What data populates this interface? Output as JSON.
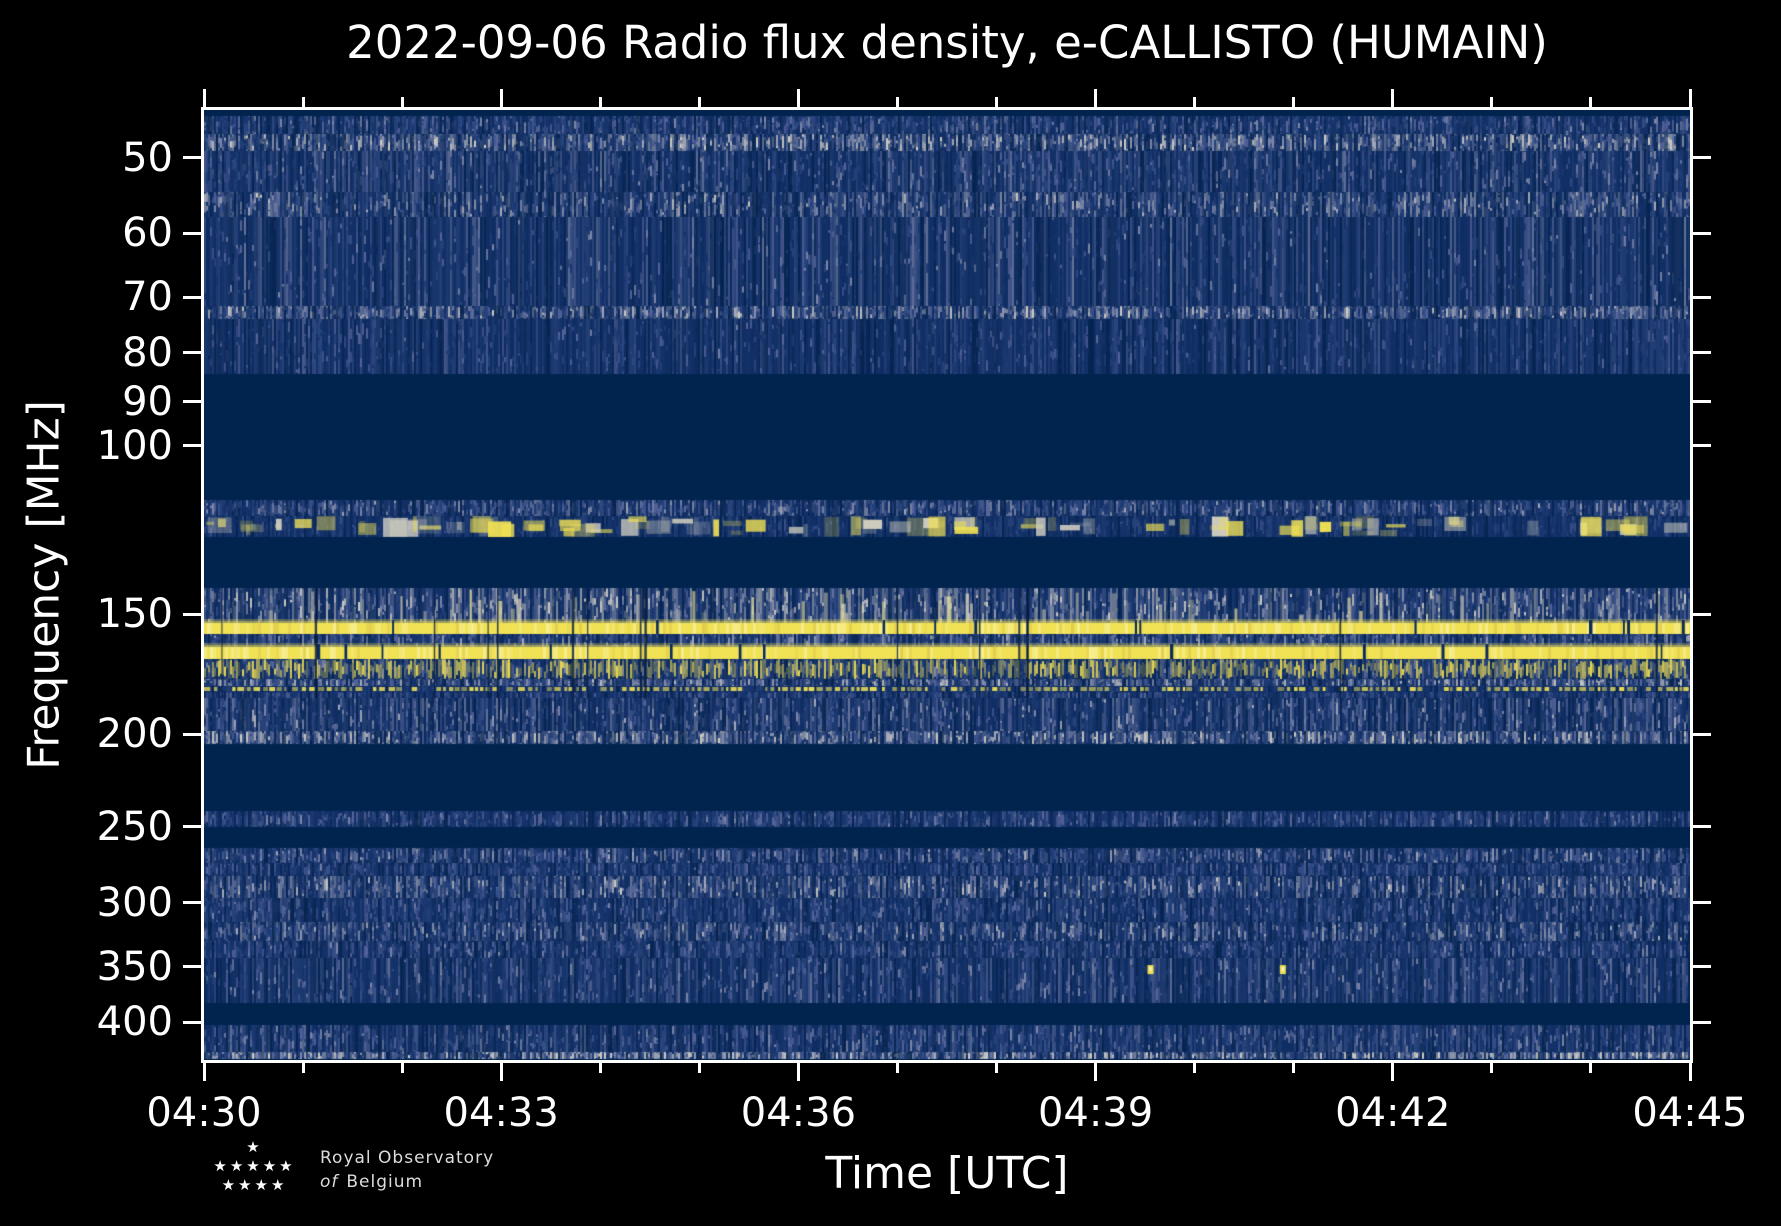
{
  "page": {
    "background": "#000000"
  },
  "chart_data": {
    "type": "heatmap",
    "subtype": "radio-spectrogram",
    "title": "2022-09-06 Radio flux density, e-CALLISTO (HUMAIN)",
    "date": "2022-09-06",
    "instrument": "e-CALLISTO",
    "station": "HUMAIN",
    "xlabel": "Time [UTC]",
    "ylabel": "Frequency [MHz]",
    "x_axis": {
      "start": "04:30",
      "end": "04:45",
      "minutes_total": 15,
      "major_every_minutes": 3,
      "major_labels": [
        "04:30",
        "04:33",
        "04:36",
        "04:39",
        "04:42",
        "04:45"
      ]
    },
    "y_axis": {
      "scale": "log",
      "inverted": true,
      "f_min_mhz": 44.6,
      "f_max_mhz": 438.0,
      "tick_values_mhz": [
        50,
        60,
        70,
        80,
        90,
        100,
        150,
        200,
        250,
        300,
        350,
        400
      ]
    },
    "colormap": {
      "background": "#01244f",
      "noise_base": "#0a2a5c",
      "noise_low": "#24417a",
      "noise_mid": "#56659a",
      "noise_high": "#a7abb8",
      "noise_peak": "#cdccc4",
      "saturated": "#f0e155"
    },
    "bands": [
      {
        "f0": 44.6,
        "f1": 45.3,
        "style": "quiet",
        "level": 0
      },
      {
        "f0": 45.3,
        "f1": 47.2,
        "style": "speckle",
        "level": 0.55
      },
      {
        "f0": 47.2,
        "f1": 49.2,
        "style": "speckle",
        "level": 0.8
      },
      {
        "f0": 49.2,
        "f1": 54.3,
        "style": "speckle",
        "level": 0.55
      },
      {
        "f0": 54.3,
        "f1": 57.7,
        "style": "speckle",
        "level": 0.7
      },
      {
        "f0": 57.7,
        "f1": 71.4,
        "style": "speckle",
        "level": 0.55
      },
      {
        "f0": 71.4,
        "f1": 73.7,
        "style": "speckle",
        "level": 0.75
      },
      {
        "f0": 73.7,
        "f1": 84.2,
        "style": "speckle",
        "level": 0.45
      },
      {
        "f0": 84.2,
        "f1": 113.9,
        "style": "quiet",
        "level": 0
      },
      {
        "f0": 113.9,
        "f1": 118.4,
        "style": "speckle",
        "level": 0.6
      },
      {
        "f0": 118.4,
        "f1": 124.4,
        "style": "yellow_blobs",
        "level": 0.6
      },
      {
        "f0": 124.4,
        "f1": 140.8,
        "style": "quiet",
        "level": 0
      },
      {
        "f0": 140.8,
        "f1": 153.2,
        "style": "speckle_streaks",
        "level": 0.8
      },
      {
        "f0": 153.2,
        "f1": 157.2,
        "style": "yellow_solid",
        "level": 1
      },
      {
        "f0": 157.2,
        "f1": 162.2,
        "style": "speckle",
        "level": 0.6
      },
      {
        "f0": 162.2,
        "f1": 167.0,
        "style": "yellow_solid",
        "level": 1
      },
      {
        "f0": 167.0,
        "f1": 175.2,
        "style": "yellow_speckle",
        "level": 0.85
      },
      {
        "f0": 175.2,
        "f1": 178.2,
        "style": "speckle",
        "level": 0.7
      },
      {
        "f0": 178.2,
        "f1": 180.8,
        "style": "yellow_dotted",
        "level": 0.8
      },
      {
        "f0": 180.8,
        "f1": 183.4,
        "style": "speckle",
        "level": 0.4
      },
      {
        "f0": 183.4,
        "f1": 198.5,
        "style": "speckle",
        "level": 0.6
      },
      {
        "f0": 198.5,
        "f1": 204.9,
        "style": "speckle",
        "level": 0.8
      },
      {
        "f0": 204.9,
        "f1": 240.7,
        "style": "quiet",
        "level": 0
      },
      {
        "f0": 240.7,
        "f1": 250.1,
        "style": "speckle",
        "level": 0.5
      },
      {
        "f0": 250.1,
        "f1": 263.2,
        "style": "quiet",
        "level": 0
      },
      {
        "f0": 263.2,
        "f1": 273.0,
        "style": "speckle",
        "level": 0.6
      },
      {
        "f0": 273.0,
        "f1": 281.7,
        "style": "speckle",
        "level": 0.45
      },
      {
        "f0": 281.7,
        "f1": 297.0,
        "style": "speckle",
        "level": 0.7
      },
      {
        "f0": 297.0,
        "f1": 314.0,
        "style": "speckle",
        "level": 0.5
      },
      {
        "f0": 314.0,
        "f1": 329.0,
        "style": "speckle",
        "level": 0.65
      },
      {
        "f0": 329.0,
        "f1": 343.0,
        "style": "speckle",
        "level": 0.5
      },
      {
        "f0": 343.0,
        "f1": 382.0,
        "style": "speckle",
        "level": 0.55
      },
      {
        "f0": 382.0,
        "f1": 403.0,
        "style": "quiet",
        "level": 0
      },
      {
        "f0": 403.0,
        "f1": 430.0,
        "style": "speckle",
        "level": 0.55
      },
      {
        "f0": 430.0,
        "f1": 437.0,
        "style": "speckle",
        "level": 0.85
      }
    ],
    "calibration_gaps": {
      "f0": 140.8,
      "f1": 183.4,
      "count": 16
    },
    "point_events": [
      {
        "time_frac": 0.637,
        "freq_mhz": 352
      },
      {
        "time_frac": 0.726,
        "freq_mhz": 352
      }
    ]
  },
  "logo": {
    "line1": "Royal Observatory",
    "line2_italic": "of",
    "line2_rest": "Belgium",
    "star_rows": [
      1,
      5,
      4
    ],
    "star_glyph": "★"
  }
}
